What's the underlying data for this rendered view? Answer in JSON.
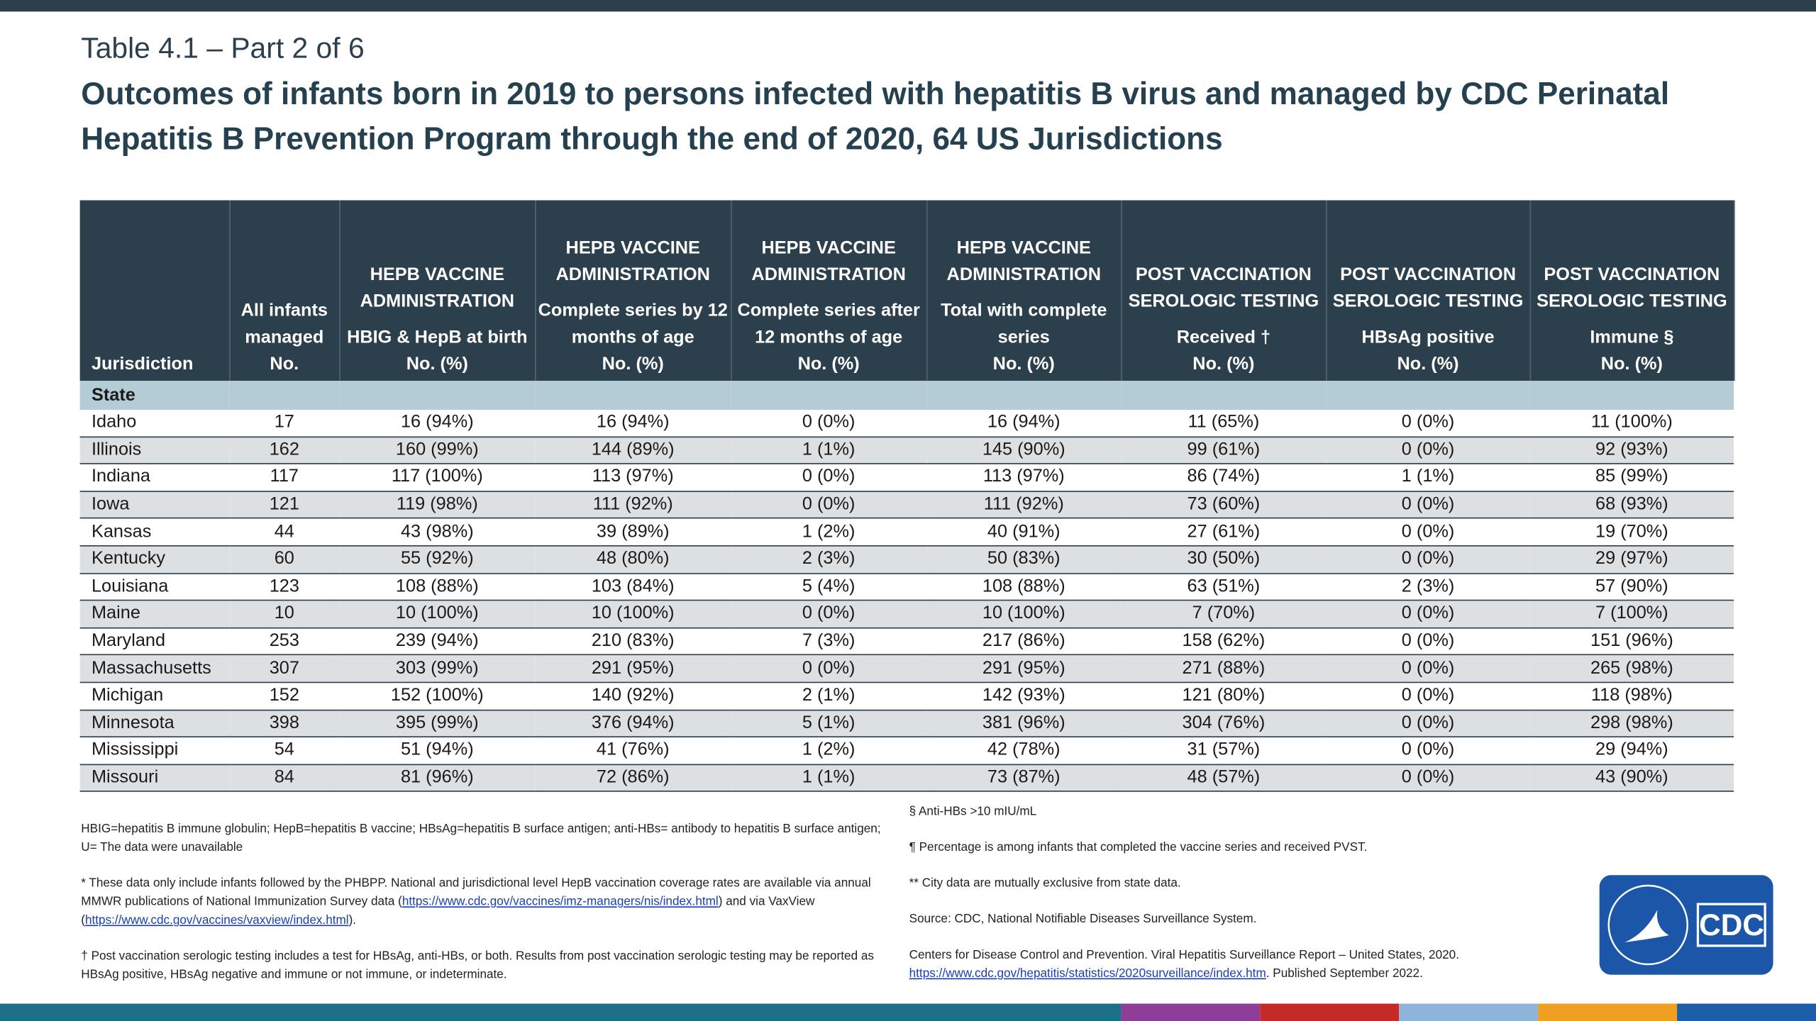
{
  "header": {
    "subtitle": "Table 4.1 – Part 2 of 6",
    "title": "Outcomes of infants born in 2019 to persons infected with hepatitis B virus and managed by CDC Perinatal Hepatitis B Prevention Program through the end of 2020, 64 US Jurisdictions"
  },
  "table": {
    "columns": [
      {
        "label": "Jurisdiction"
      },
      {
        "label": "All infants managed",
        "unit": "No."
      },
      {
        "group": "HEPB VACCINE ADMINISTRATION",
        "label": "HBIG & HepB at birth",
        "unit": "No. (%)"
      },
      {
        "group": "HEPB VACCINE ADMINISTRATION",
        "label": "Complete series by 12 months of age",
        "unit": "No. (%)"
      },
      {
        "group": "HEPB VACCINE ADMINISTRATION",
        "label": "Complete series after 12 months of age",
        "unit": "No. (%)"
      },
      {
        "group": "HEPB VACCINE ADMINISTRATION",
        "label": "Total with complete series",
        "unit": "No. (%)"
      },
      {
        "group": "POST VACCINATION SEROLOGIC TESTING",
        "label": "Received †",
        "unit": "No. (%)"
      },
      {
        "group": "POST VACCINATION SEROLOGIC TESTING",
        "label": "HBsAg positive",
        "unit": "No. (%)"
      },
      {
        "group": "POST VACCINATION SEROLOGIC TESTING",
        "label": "Immune §",
        "unit": "No. (%)"
      }
    ],
    "section": "State",
    "rows": [
      [
        "Idaho",
        "17",
        "16 (94%)",
        "16 (94%)",
        "0 (0%)",
        "16 (94%)",
        "11 (65%)",
        "0 (0%)",
        "11 (100%)"
      ],
      [
        "Illinois",
        "162",
        "160 (99%)",
        "144 (89%)",
        "1 (1%)",
        "145 (90%)",
        "99 (61%)",
        "0 (0%)",
        "92 (93%)"
      ],
      [
        "Indiana",
        "117",
        "117 (100%)",
        "113 (97%)",
        "0 (0%)",
        "113 (97%)",
        "86 (74%)",
        "1 (1%)",
        "85 (99%)"
      ],
      [
        "Iowa",
        "121",
        "119 (98%)",
        "111 (92%)",
        "0 (0%)",
        "111 (92%)",
        "73 (60%)",
        "0 (0%)",
        "68 (93%)"
      ],
      [
        "Kansas",
        "44",
        "43 (98%)",
        "39 (89%)",
        "1 (2%)",
        "40 (91%)",
        "27 (61%)",
        "0 (0%)",
        "19 (70%)"
      ],
      [
        "Kentucky",
        "60",
        "55 (92%)",
        "48 (80%)",
        "2 (3%)",
        "50 (83%)",
        "30 (50%)",
        "0 (0%)",
        "29 (97%)"
      ],
      [
        "Louisiana",
        "123",
        "108 (88%)",
        "103 (84%)",
        "5 (4%)",
        "108 (88%)",
        "63 (51%)",
        "2 (3%)",
        "57 (90%)"
      ],
      [
        "Maine",
        "10",
        "10 (100%)",
        "10 (100%)",
        "0 (0%)",
        "10 (100%)",
        "7 (70%)",
        "0 (0%)",
        "7 (100%)"
      ],
      [
        "Maryland",
        "253",
        "239 (94%)",
        "210 (83%)",
        "7 (3%)",
        "217 (86%)",
        "158 (62%)",
        "0 (0%)",
        "151 (96%)"
      ],
      [
        "Massachusetts",
        "307",
        "303 (99%)",
        "291 (95%)",
        "0 (0%)",
        "291 (95%)",
        "271 (88%)",
        "0 (0%)",
        "265 (98%)"
      ],
      [
        "Michigan",
        "152",
        "152 (100%)",
        "140 (92%)",
        "2 (1%)",
        "142 (93%)",
        "121 (80%)",
        "0 (0%)",
        "118 (98%)"
      ],
      [
        "Minnesota",
        "398",
        "395 (99%)",
        "376 (94%)",
        "5 (1%)",
        "381 (96%)",
        "304 (76%)",
        "0 (0%)",
        "298 (98%)"
      ],
      [
        "Mississippi",
        "54",
        "51 (94%)",
        "41 (76%)",
        "1 (2%)",
        "42 (78%)",
        "31 (57%)",
        "0 (0%)",
        "29 (94%)"
      ],
      [
        "Missouri",
        "84",
        "81 (96%)",
        "72 (86%)",
        "1 (1%)",
        "73 (87%)",
        "48 (57%)",
        "0 (0%)",
        "43 (90%)"
      ]
    ]
  },
  "footnotes": {
    "left": [
      [
        {
          "text": "HBIG=hepatitis B immune globulin; HepB=hepatitis B vaccine; HBsAg=hepatitis B surface antigen; anti-HBs= antibody to hepatitis B surface antigen; U= The data were unavailable"
        }
      ],
      [
        {
          "text": "* These data only include infants followed by the PHBPP. National and jurisdictional level HepB vaccination coverage rates are available via annual MMWR publications of National Immunization Survey data ("
        },
        {
          "link": "https://www.cdc.gov/vaccines/imz-managers/nis/index.html"
        },
        {
          "text": ") and via VaxView ("
        },
        {
          "link": "https://www.cdc.gov/vaccines/vaxview/index.html"
        },
        {
          "text": ")."
        }
      ],
      [
        {
          "text": "† Post vaccination serologic testing includes a test for HBsAg, anti-HBs, or both. Results from post vaccination serologic testing may be reported as HBsAg positive, HBsAg negative and immune or not immune, or indeterminate."
        }
      ]
    ],
    "right": [
      [
        {
          "text": "§ Anti-HBs >10 mIU/mL"
        }
      ],
      [
        {
          "text": "¶ Percentage is among infants that completed the vaccine series and received PVST."
        }
      ],
      [
        {
          "text": "** City data are mutually exclusive from state data."
        }
      ],
      [
        {
          "text": "Source: CDC, National Notifiable Diseases Surveillance System."
        }
      ],
      [
        {
          "text": "Centers for Disease Control and Prevention. Viral Hepatitis Surveillance Report – United States, 2020. "
        },
        {
          "link": "https://www.cdc.gov/hepatitis/statistics/2020surveillance/index.htm"
        },
        {
          "text": ". Published September 2022."
        }
      ]
    ]
  },
  "logo": {
    "text": "CDC"
  }
}
